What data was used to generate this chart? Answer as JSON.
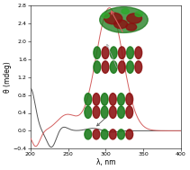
{
  "title": "",
  "xlabel": "λ, nm",
  "ylabel": "θ (mdeg)",
  "xlim": [
    200,
    400
  ],
  "ylim": [
    -0.4,
    2.8
  ],
  "yticks": [
    -0.4,
    0.0,
    0.4,
    0.8,
    1.2,
    1.6,
    2.0,
    2.4,
    2.8
  ],
  "xticks": [
    200,
    250,
    300,
    350,
    400
  ],
  "background_color": "#ffffff",
  "red_color": "#d46060",
  "black_color": "#555555",
  "figsize": [
    2.11,
    1.89
  ],
  "dpi": 100
}
